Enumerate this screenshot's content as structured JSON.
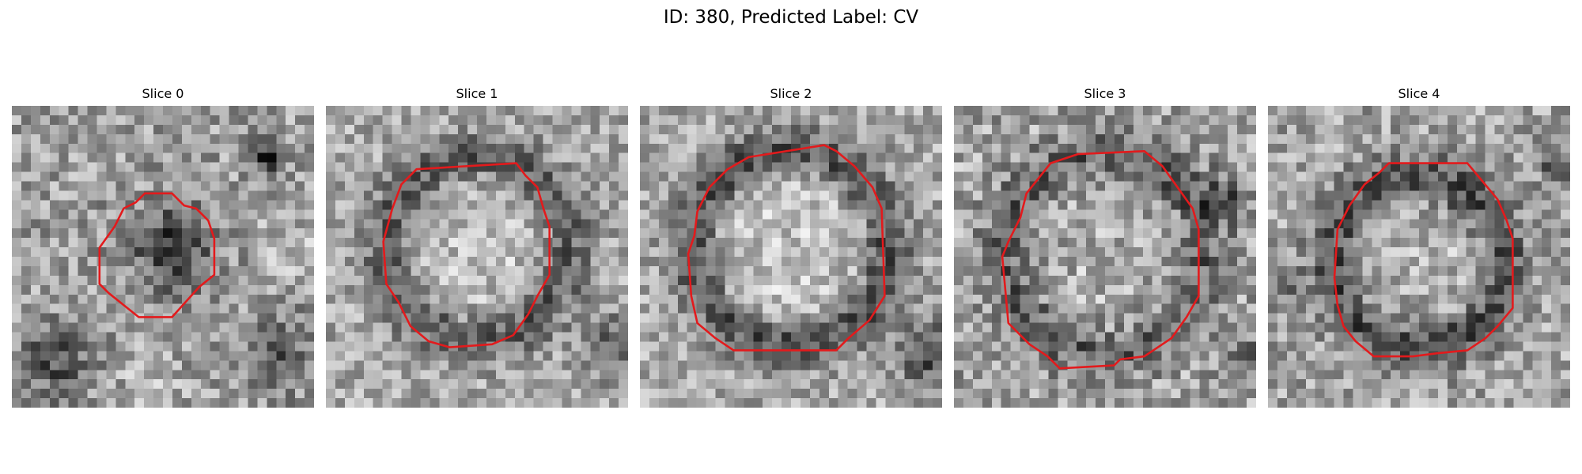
{
  "figure": {
    "title": "ID: 380, Predicted Label: CV"
  },
  "panels": [
    {
      "title": "Slice 0",
      "contour_color": "#e31a1c"
    },
    {
      "title": "Slice 1",
      "contour_color": "#e31a1c"
    },
    {
      "title": "Slice 2",
      "contour_color": "#e31a1c"
    },
    {
      "title": "Slice 3",
      "contour_color": "#e31a1c"
    },
    {
      "title": "Slice 4",
      "contour_color": "#e31a1c"
    }
  ]
}
